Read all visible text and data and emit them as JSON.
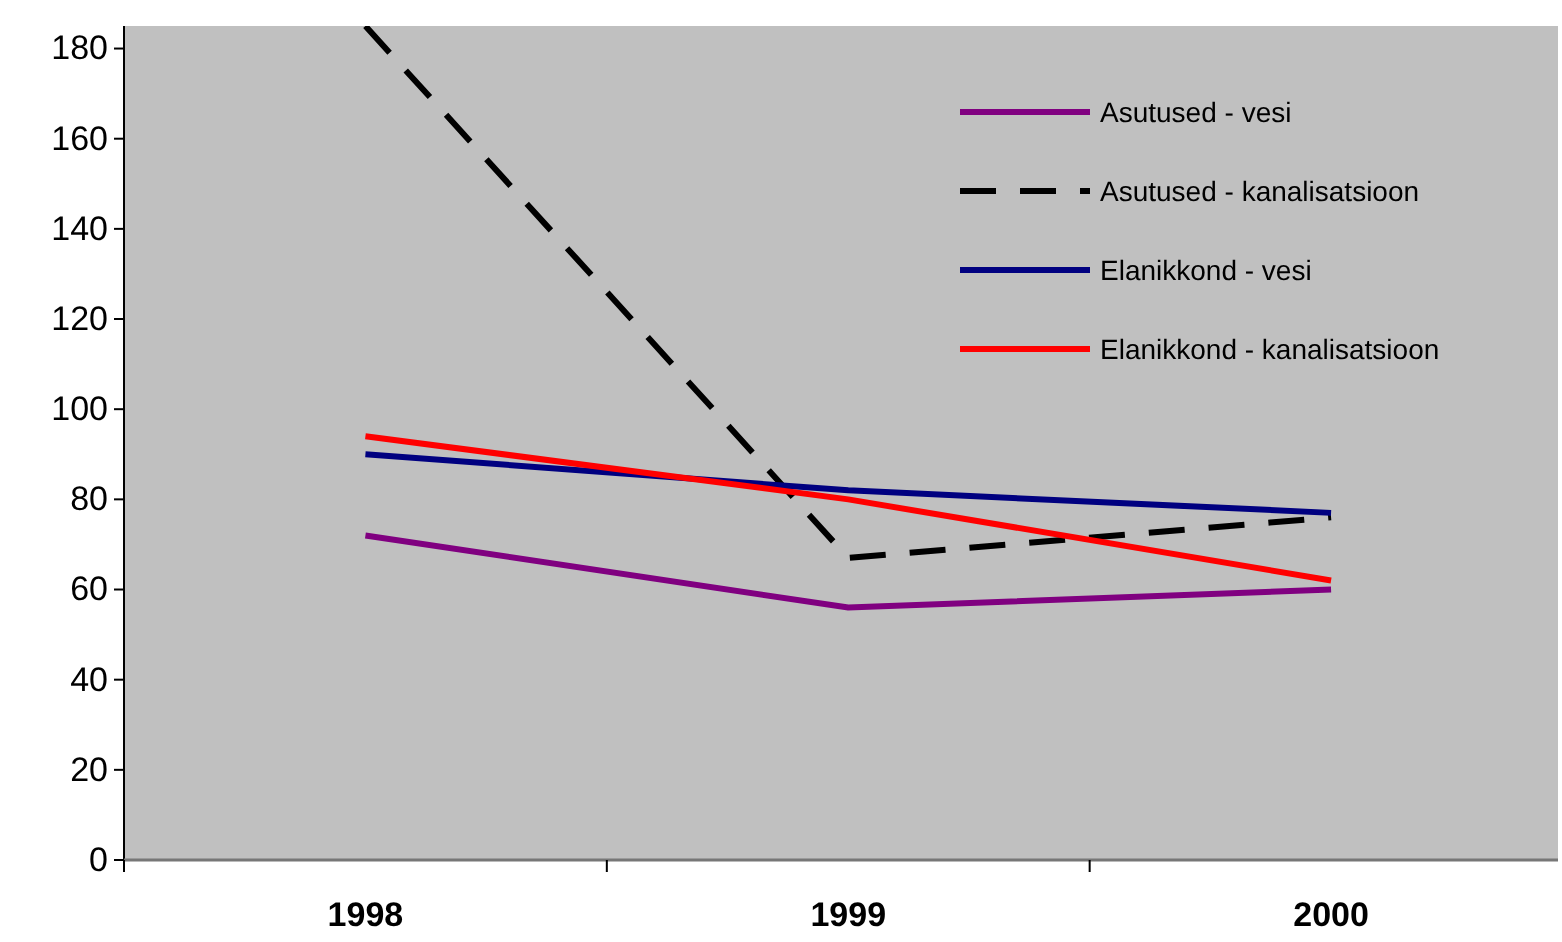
{
  "chart_data": {
    "type": "line",
    "categories": [
      "1998",
      "1999",
      "2000"
    ],
    "ylim": [
      0,
      185
    ],
    "yticks": [
      0,
      20,
      40,
      60,
      80,
      100,
      120,
      140,
      160,
      180
    ],
    "grid": false,
    "legend": "top right",
    "series": [
      {
        "name": "Asutused - vesi",
        "color": "#800080",
        "values": [
          72,
          56,
          60
        ],
        "line_style": "solid"
      },
      {
        "name": "Asutused - kanalisatsioon",
        "color": "#000000",
        "values": [
          185,
          67,
          76
        ],
        "line_style": "dashed"
      },
      {
        "name": "Elanikkond - vesi",
        "color": "#000080",
        "values": [
          90,
          82,
          77
        ],
        "line_style": "solid"
      },
      {
        "name": "Elanikkond - kanalisatsioon",
        "color": "#ff0000",
        "values": [
          94,
          80,
          62
        ],
        "line_style": "solid"
      }
    ]
  }
}
